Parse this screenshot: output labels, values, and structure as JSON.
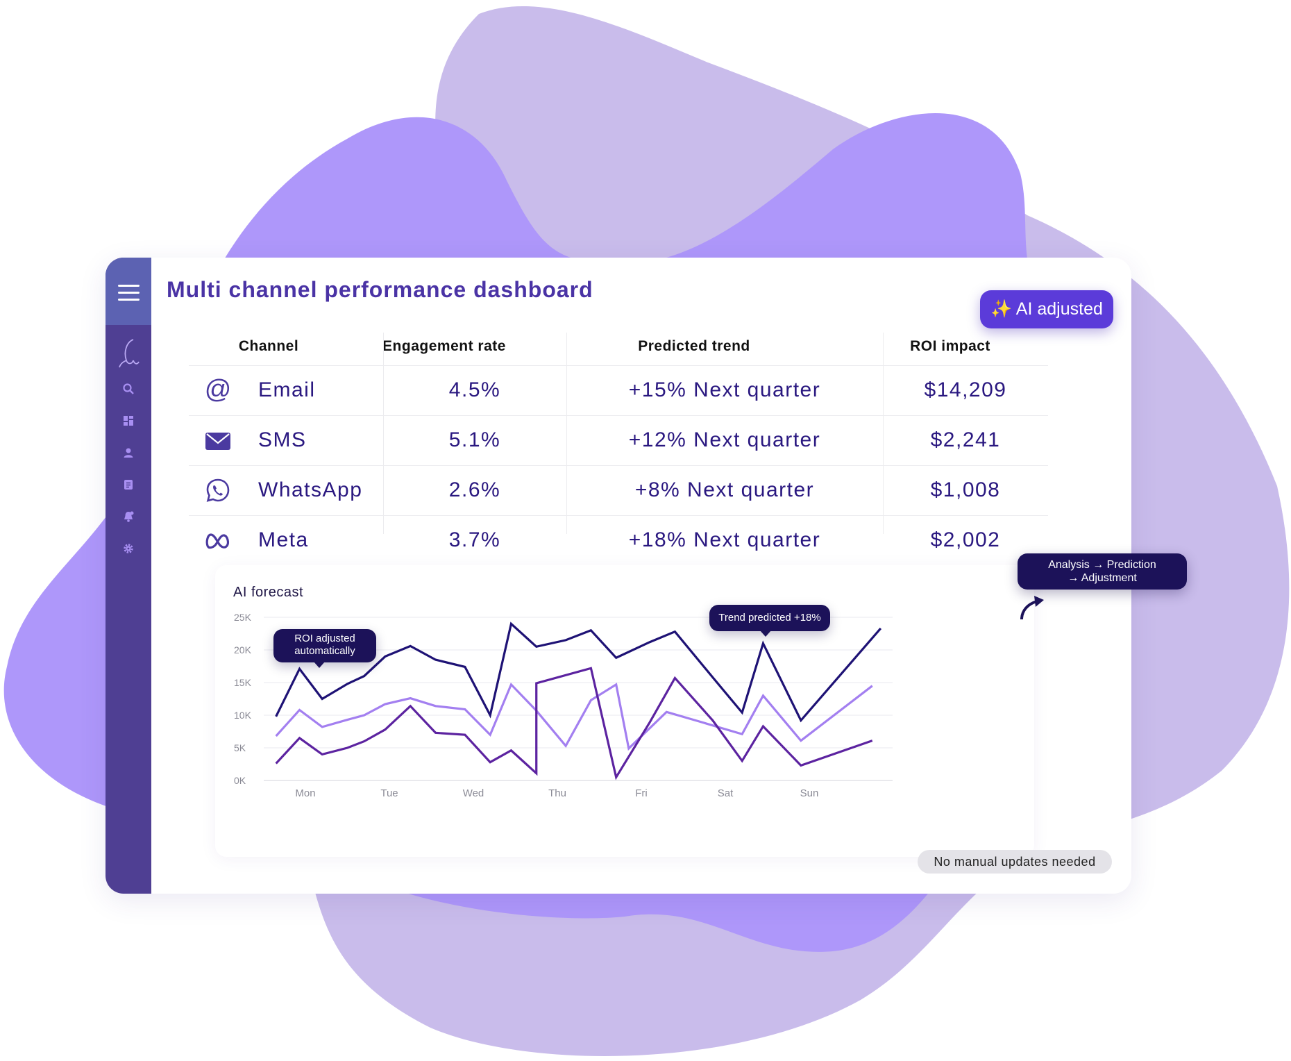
{
  "sidebar": {
    "items": [
      "menu-icon",
      "logo-icon",
      "search-icon",
      "dashboard-icon",
      "user-icon",
      "document-icon",
      "notifications-icon",
      "settings-icon"
    ]
  },
  "header": {
    "title": "Multi channel performance dashboard"
  },
  "badge": {
    "label": "✨ AI adjusted"
  },
  "table": {
    "columns": [
      "Channel",
      "Engagement rate",
      "Predicted trend",
      "ROI impact"
    ],
    "rows": [
      {
        "icon": "at-icon",
        "channel": "Email",
        "engagement": "4.5%",
        "trend": "+15% Next quarter",
        "roi": "$14,209"
      },
      {
        "icon": "envelope-icon",
        "channel": "SMS",
        "engagement": "5.1%",
        "trend": "+12% Next quarter",
        "roi": "$2,241"
      },
      {
        "icon": "whatsapp-icon",
        "channel": "WhatsApp",
        "engagement": "2.6%",
        "trend": "+8% Next quarter",
        "roi": "$1,008"
      },
      {
        "icon": "meta-icon",
        "channel": "Meta",
        "engagement": "3.7%",
        "trend": "+18% Next quarter",
        "roi": "$2,002"
      }
    ]
  },
  "chart_data": {
    "type": "line",
    "title": "AI forecast",
    "xlabel": "",
    "ylabel": "",
    "x_ticks": [
      "Mon",
      "Tue",
      "Wed",
      "Thu",
      "Fri",
      "Sat",
      "Sun"
    ],
    "y_ticks": [
      "0K",
      "5K",
      "10K",
      "15K",
      "20K",
      "25K"
    ],
    "ylim": [
      0,
      25000
    ],
    "x_range": [
      0,
      7
    ],
    "grid": true,
    "series": [
      {
        "color": "#1e1275",
        "points": [
          [
            -0.35,
            9800
          ],
          [
            -0.07,
            17100
          ],
          [
            0.2,
            12500
          ],
          [
            0.5,
            14800
          ],
          [
            0.7,
            16000
          ],
          [
            0.95,
            19000
          ],
          [
            1.25,
            20600
          ],
          [
            1.55,
            18500
          ],
          [
            1.9,
            17400
          ],
          [
            2.2,
            10000
          ],
          [
            2.45,
            24000
          ],
          [
            2.75,
            20500
          ],
          [
            3.1,
            21500
          ],
          [
            3.4,
            23000
          ],
          [
            3.7,
            18800
          ],
          [
            4.1,
            21200
          ],
          [
            4.4,
            22800
          ],
          [
            4.85,
            15800
          ],
          [
            5.2,
            10400
          ],
          [
            5.45,
            21000
          ],
          [
            5.9,
            9200
          ],
          [
            6.85,
            23300
          ]
        ]
      },
      {
        "color": "#a37ff0",
        "points": [
          [
            -0.35,
            6800
          ],
          [
            -0.07,
            10800
          ],
          [
            0.2,
            8200
          ],
          [
            0.5,
            9300
          ],
          [
            0.7,
            10000
          ],
          [
            0.95,
            11700
          ],
          [
            1.25,
            12600
          ],
          [
            1.55,
            11400
          ],
          [
            1.9,
            10900
          ],
          [
            2.2,
            7000
          ],
          [
            2.45,
            14700
          ],
          [
            2.75,
            10700
          ],
          [
            3.1,
            5300
          ],
          [
            3.4,
            12300
          ],
          [
            3.7,
            14700
          ],
          [
            3.85,
            4900
          ],
          [
            4.3,
            10500
          ],
          [
            4.7,
            9000
          ],
          [
            5.2,
            7100
          ],
          [
            5.45,
            13000
          ],
          [
            5.9,
            6100
          ],
          [
            6.75,
            14500
          ]
        ]
      },
      {
        "color": "#5c23a0",
        "points": [
          [
            -0.35,
            2600
          ],
          [
            -0.07,
            6500
          ],
          [
            0.2,
            4000
          ],
          [
            0.5,
            5000
          ],
          [
            0.7,
            6000
          ],
          [
            0.95,
            7800
          ],
          [
            1.25,
            11400
          ],
          [
            1.55,
            7300
          ],
          [
            1.9,
            7000
          ],
          [
            2.2,
            2800
          ],
          [
            2.45,
            4600
          ],
          [
            2.75,
            1100
          ],
          [
            2.75,
            14900
          ],
          [
            3.4,
            17200
          ],
          [
            3.7,
            500
          ],
          [
            4.1,
            8900
          ],
          [
            4.4,
            15700
          ],
          [
            4.85,
            9200
          ],
          [
            5.2,
            3000
          ],
          [
            5.45,
            8300
          ],
          [
            5.9,
            2300
          ],
          [
            6.75,
            6100
          ]
        ]
      }
    ],
    "annotations": [
      {
        "text": "ROI adjusted automatically",
        "x": -0.07,
        "y": 17100
      },
      {
        "text": "Trend predicted +18%",
        "x": 5.45,
        "y": 21000
      }
    ]
  },
  "callouts": {
    "flow": "Analysis → Prediction → Adjustment",
    "flow_line1": "Analysis → Prediction",
    "flow_line2": "→ Adjustment",
    "roi_line1": "ROI adjusted",
    "roi_line2": "automatically",
    "trend": "Trend predicted +18%"
  },
  "footer_badge": "No manual updates needed",
  "colors": {
    "title": "#4a33a5",
    "sidebar": "#4f3f93",
    "sidebar_top": "#5c62b2",
    "badge": "#5b3bd9",
    "callout": "#1c1259",
    "blob_light": "#c9bceb",
    "blob_dark": "#ae97fa"
  }
}
